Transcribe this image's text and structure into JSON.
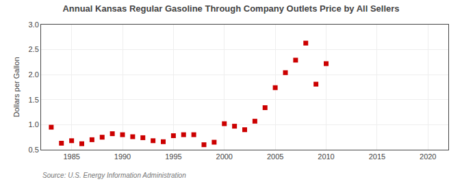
{
  "chart_data": {
    "type": "scatter",
    "title": "Annual Kansas Regular Gasoline Through Company Outlets Price by All Sellers",
    "y_label": "Dollars per Gallon",
    "annotations": [
      "Source: U.S. Energy Information Administration"
    ],
    "x": [
      1983,
      1984,
      1985,
      1986,
      1987,
      1988,
      1989,
      1990,
      1991,
      1992,
      1993,
      1994,
      1995,
      1996,
      1997,
      1998,
      1999,
      2000,
      2001,
      2002,
      2003,
      2004,
      2005,
      2006,
      2007,
      2008,
      2009,
      2010
    ],
    "values": [
      0.95,
      0.63,
      0.68,
      0.62,
      0.7,
      0.75,
      0.82,
      0.8,
      0.76,
      0.74,
      0.68,
      0.66,
      0.78,
      0.8,
      0.8,
      0.6,
      0.65,
      1.02,
      0.97,
      0.9,
      1.07,
      1.34,
      1.74,
      2.04,
      2.29,
      2.63,
      1.81,
      2.22
    ],
    "color": "#cc0000",
    "marker": "square",
    "xlim": [
      1982,
      2022
    ],
    "ylim": [
      0.5,
      3.0
    ],
    "xticks": [
      1985,
      1990,
      1995,
      2000,
      2005,
      2010,
      2015,
      2020
    ],
    "yticks": [
      0.5,
      {
        "value": 1.0,
        "label": "1.0"
      },
      1.5,
      {
        "value": 2.0,
        "label": "2.0"
      },
      2.5,
      {
        "value": 3.0,
        "label": "3.0"
      }
    ],
    "grid": true
  }
}
